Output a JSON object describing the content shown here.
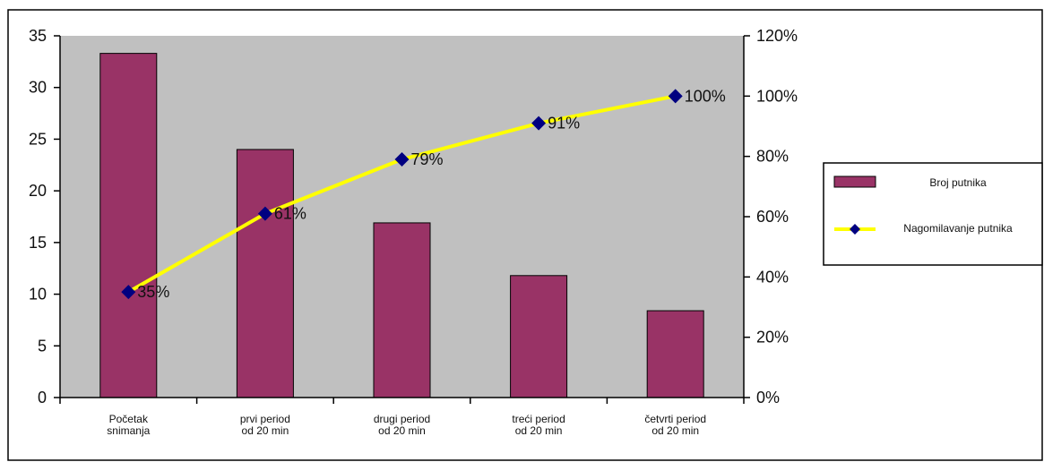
{
  "chart_data": {
    "type": "bar",
    "categories": [
      [
        "Početak",
        "snimanja"
      ],
      [
        "prvi period",
        "od 20 min"
      ],
      [
        "drugi period",
        "od 20 min"
      ],
      [
        "treći period",
        "od 20 min"
      ],
      [
        "četvrti period",
        "od 20 min"
      ]
    ],
    "series": [
      {
        "name": "Broj putnika",
        "type": "bar",
        "axis": "left",
        "color": "#993366",
        "values": [
          33.3,
          24,
          16.9,
          11.8,
          8.4
        ]
      },
      {
        "name": "Nagomilavanje putnika",
        "type": "line",
        "axis": "right",
        "color": "#ffff00",
        "marker_color": "#000080",
        "values": [
          35,
          61,
          79,
          91,
          100
        ],
        "data_labels": [
          "35%",
          "61%",
          "79%",
          "91%",
          "100%"
        ]
      }
    ],
    "y_left": {
      "ylim": [
        0,
        35
      ],
      "ticks": [
        0,
        5,
        10,
        15,
        20,
        25,
        30,
        35
      ],
      "tick_labels": [
        "0",
        "5",
        "10",
        "15",
        "20",
        "25",
        "30",
        "35"
      ]
    },
    "y_right": {
      "ylim": [
        0,
        120
      ],
      "ticks": [
        0,
        20,
        40,
        60,
        80,
        100,
        120
      ],
      "tick_labels": [
        "0%",
        "20%",
        "40%",
        "60%",
        "80%",
        "100%",
        "120%"
      ]
    },
    "plot_background": "#c0c0c0",
    "grid": false,
    "legend_position": "right"
  }
}
